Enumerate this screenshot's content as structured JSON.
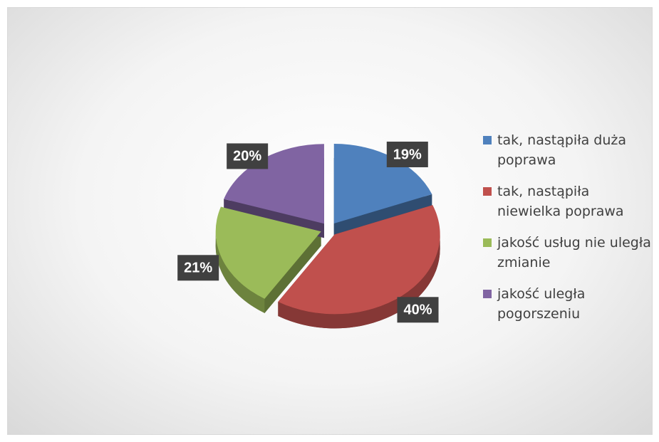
{
  "chart_data": {
    "type": "pie3d",
    "categories": [
      "tak, nastąpiła duża poprawa",
      "tak, nastąpiła niewielka poprawa",
      "jakość usług nie uległa zmianie",
      "jakość uległa pogorszeniu"
    ],
    "values": [
      19,
      40,
      21,
      20
    ],
    "value_labels": [
      "19%",
      "40%",
      "21%",
      "20%"
    ],
    "colors": [
      "#4f81bd",
      "#c0504d",
      "#9bbb59",
      "#8064a2"
    ],
    "legend": "right"
  }
}
